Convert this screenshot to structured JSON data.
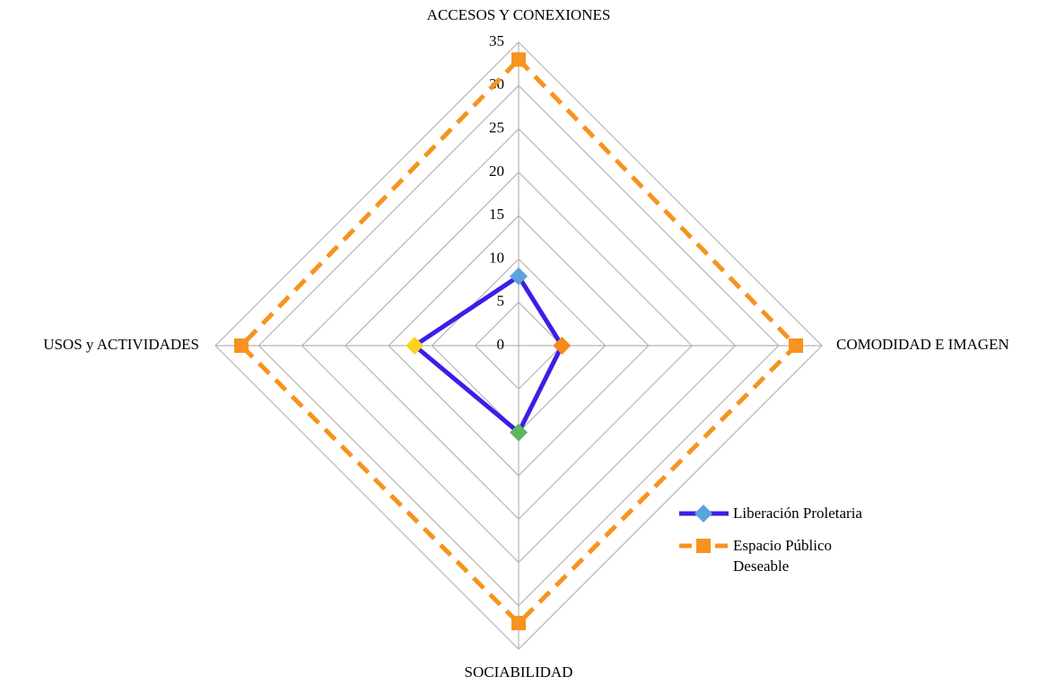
{
  "chart_data": {
    "type": "radar",
    "categories": [
      "ACCESOS Y CONEXIONES",
      "COMODIDAD E IMAGEN",
      "SOCIABILIDAD",
      "USOS y ACTIVIDADES"
    ],
    "series": [
      {
        "name": "Liberación Proletaria",
        "color": "#3b1fe6",
        "point_colors": [
          "#5ba3dc",
          "#f58a1f",
          "#5cb85c",
          "#ffd21f"
        ],
        "dashed": false,
        "marker": "diamond",
        "values": [
          8,
          5,
          10,
          12
        ]
      },
      {
        "name": "Espacio Público Deseable",
        "color": "#f7931e",
        "point_colors": [
          "#f7931e",
          "#f7931e",
          "#f7931e",
          "#f7931e"
        ],
        "dashed": true,
        "marker": "square",
        "values": [
          33,
          32,
          32,
          32
        ]
      }
    ],
    "ylim": [
      0,
      35
    ],
    "yticks": [
      0,
      5,
      10,
      15,
      20,
      25,
      30,
      35
    ],
    "grid": true,
    "legend": "lower right"
  }
}
